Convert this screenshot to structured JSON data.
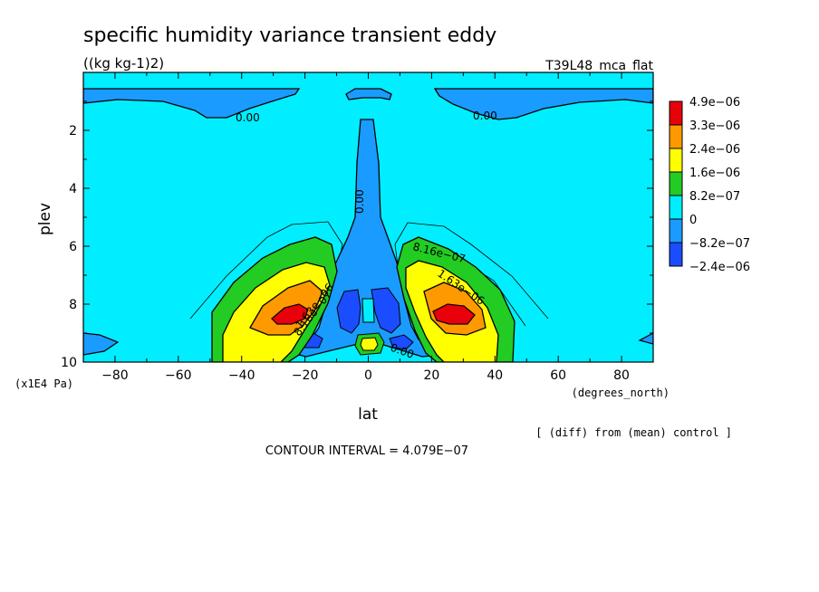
{
  "chart_data": {
    "type": "heatmap",
    "title": "specific humidity variance transient eddy",
    "units": "((kg kg-1)2)",
    "run_label": "T39L48_mca_flat",
    "xlabel": "lat",
    "x_units": "(degrees_north)",
    "ylabel": "plev",
    "y_units": "(x1E4 Pa)",
    "xlim": [
      -90,
      90
    ],
    "ylim": [
      10,
      0
    ],
    "x_ticks": [
      -80,
      -60,
      -40,
      -20,
      0,
      20,
      40,
      60,
      80
    ],
    "x_tick_labels": [
      "−80",
      "−60",
      "−40",
      "−20",
      "0",
      "20",
      "40",
      "60",
      "80"
    ],
    "y_ticks": [
      2,
      4,
      6,
      8,
      10
    ],
    "y_tick_labels": [
      "2",
      "4",
      "6",
      "8",
      "10"
    ],
    "legend": {
      "position": "right",
      "colors": [
        "#e8000b",
        "#ff9900",
        "#ffff00",
        "#22cc22",
        "#00eeff",
        "#1a9bff",
        "#1a4dff"
      ],
      "labels": [
        "4.9e−06",
        "3.3e−06",
        "2.4e−06",
        "1.6e−06",
        "8.2e−07",
        "0",
        "−8.2e−07",
        "−2.4e−06"
      ]
    },
    "contour_labels": [
      "0.00",
      "0.00",
      "0.00",
      "0.00",
      "8.16e−07",
      "1.63e−06",
      "1.63e−06",
      "8.16e−07"
    ],
    "contour_interval_text": "CONTOUR INTERVAL = 4.079E−07",
    "diff_note": "[ (diff) from (mean) control ]",
    "field": [
      {
        "lat": -25,
        "plev": 8.4,
        "value": 4.9e-06
      },
      {
        "lat": 25,
        "plev": 8.4,
        "value": 4.9e-06
      },
      {
        "lat": -30,
        "plev": 8.3,
        "value": 3.3e-06
      },
      {
        "lat": 27,
        "plev": 8.3,
        "value": 3.3e-06
      },
      {
        "lat": -10,
        "plev": 8.8,
        "value": -1.2e-06
      },
      {
        "lat": 8,
        "plev": 8.8,
        "value": -1.2e-06
      },
      {
        "lat": 0,
        "plev": 9.2,
        "value": 2e-06
      }
    ]
  }
}
